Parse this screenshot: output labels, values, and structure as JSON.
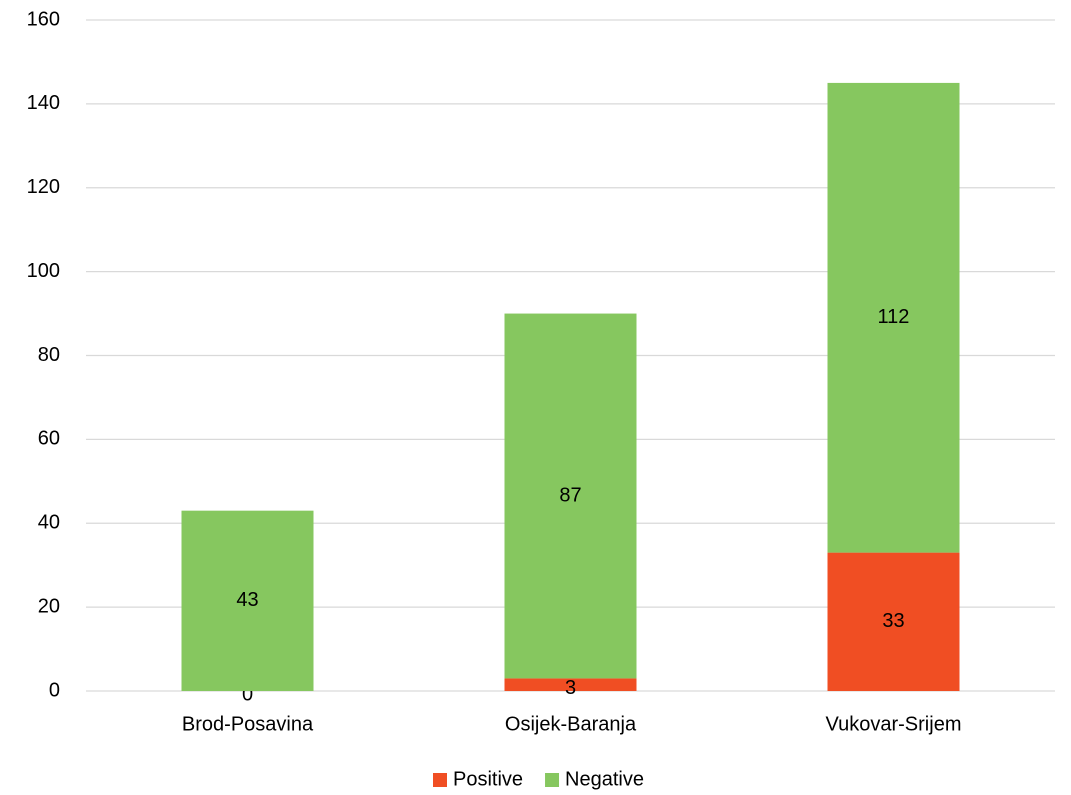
{
  "chart_data": {
    "type": "stacked_bar",
    "categories": [
      "Brod-Posavina",
      "Osijek-Baranja",
      "Vukovar-Srijem"
    ],
    "series": [
      {
        "name": "Positive",
        "color": "#f04e23",
        "values": [
          0,
          3,
          33
        ]
      },
      {
        "name": "Negative",
        "color": "#86c75f",
        "values": [
          43,
          87,
          112
        ]
      }
    ],
    "ylim": [
      0,
      160
    ],
    "yticks": [
      0,
      20,
      40,
      60,
      80,
      100,
      120,
      140,
      160
    ],
    "grid": true,
    "legend": "bottom"
  }
}
